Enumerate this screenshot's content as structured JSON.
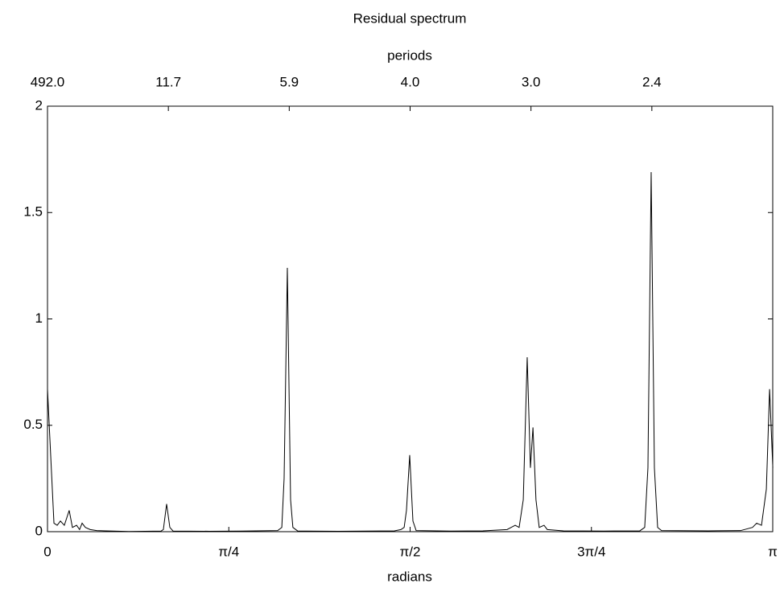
{
  "chart_data": {
    "type": "line",
    "title": "Residual spectrum",
    "x_label": "radians",
    "x2_label": "periods",
    "color": "#000000",
    "x": [
      0,
      0.028,
      0.042,
      0.056,
      0.073,
      0.094,
      0.108,
      0.126,
      0.139,
      0.15,
      0.164,
      0.185,
      0.213,
      0.352,
      0.492,
      0.502,
      0.516,
      0.53,
      0.544,
      0.701,
      0.84,
      0.997,
      1.015,
      1.025,
      1.039,
      1.053,
      1.063,
      1.084,
      1.259,
      1.503,
      1.531,
      1.545,
      1.555,
      1.569,
      1.583,
      1.597,
      1.747,
      1.886,
      1.991,
      2.026,
      2.043,
      2.061,
      2.078,
      2.092,
      2.103,
      2.116,
      2.13,
      2.151,
      2.165,
      2.235,
      2.409,
      2.566,
      2.587,
      2.601,
      2.615,
      2.629,
      2.643,
      2.66,
      2.863,
      3.002,
      3.054,
      3.072,
      3.093,
      3.114,
      3.128,
      3.142
    ],
    "values": [
      0.67,
      0.04,
      0.03,
      0.05,
      0.03,
      0.1,
      0.02,
      0.03,
      0.01,
      0.04,
      0.02,
      0.01,
      0.005,
      0.001,
      0.003,
      0.01,
      0.13,
      0.02,
      0.003,
      0.002,
      0.003,
      0.005,
      0.02,
      0.25,
      1.24,
      0.15,
      0.02,
      0.003,
      0.002,
      0.004,
      0.01,
      0.02,
      0.1,
      0.36,
      0.05,
      0.005,
      0.003,
      0.004,
      0.01,
      0.03,
      0.02,
      0.15,
      0.82,
      0.3,
      0.49,
      0.15,
      0.02,
      0.03,
      0.01,
      0.004,
      0.003,
      0.004,
      0.02,
      0.3,
      1.69,
      0.3,
      0.02,
      0.005,
      0.004,
      0.005,
      0.02,
      0.04,
      0.03,
      0.2,
      0.67,
      0.3
    ],
    "xlim": [
      0,
      3.1416
    ],
    "ylim": [
      0,
      2
    ],
    "yticks": [
      0,
      0.5,
      1,
      1.5,
      2
    ],
    "xticks": [
      0,
      {
        "value": 0.7854,
        "label": "π/4"
      },
      {
        "value": 1.5708,
        "label": "π/2"
      },
      {
        "value": 2.3562,
        "label": "3π/4"
      },
      {
        "value": 3.1416,
        "label": "π"
      }
    ],
    "x2ticks": [
      {
        "value": 0,
        "label": "492.0"
      },
      {
        "value": 0.5236,
        "label": "11.7"
      },
      {
        "value": 1.0472,
        "label": "5.9"
      },
      {
        "value": 1.5708,
        "label": "4.0"
      },
      {
        "value": 2.0944,
        "label": "3.0"
      },
      {
        "value": 2.618,
        "label": "2.4"
      }
    ]
  }
}
